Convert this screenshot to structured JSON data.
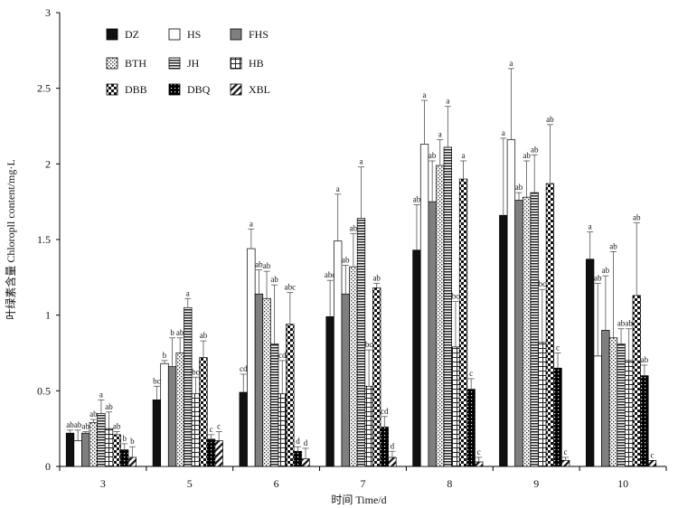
{
  "chart_data": {
    "type": "bar",
    "title": "",
    "xlabel": "时间 Time/d",
    "ylabel": "叶绿素含量 Chloropll content/mg·L",
    "ylim": [
      0,
      3
    ],
    "yticks": [
      "0",
      "0.5",
      "1",
      "1.5",
      "2",
      "2.5",
      "3"
    ],
    "categories": [
      "3",
      "5",
      "6",
      "7",
      "8",
      "9",
      "10"
    ],
    "grid": false,
    "legend_position": "top-left",
    "series": [
      {
        "name": "DZ",
        "pattern": "solid-black",
        "values": [
          0.22,
          0.44,
          0.49,
          0.99,
          1.43,
          1.66,
          1.37
        ],
        "errors": [
          0.02,
          0.09,
          0.12,
          0.24,
          0.3,
          0.51,
          0.18
        ],
        "labels": [
          "ab",
          "bc",
          "cd",
          "abc",
          "ab",
          "a",
          "a"
        ]
      },
      {
        "name": "HS",
        "pattern": "white",
        "values": [
          0.17,
          0.68,
          1.44,
          1.49,
          2.13,
          2.16,
          0.73
        ],
        "errors": [
          0.07,
          0.02,
          0.13,
          0.31,
          0.29,
          0.47,
          0.48
        ],
        "labels": [
          "ab",
          "b",
          "a",
          "a",
          "a",
          "a",
          "ab"
        ]
      },
      {
        "name": "FHS",
        "pattern": "gray",
        "values": [
          0.22,
          0.66,
          1.14,
          1.14,
          1.75,
          1.76,
          0.9
        ],
        "errors": [
          0.01,
          0.19,
          0.16,
          0.19,
          0.27,
          0.05,
          0.36
        ],
        "labels": [
          "ab",
          "b",
          "ab",
          "ab",
          "ab",
          "ab",
          "ab"
        ]
      },
      {
        "name": "BTH",
        "pattern": "dots",
        "values": [
          0.29,
          0.75,
          1.11,
          1.32,
          1.99,
          1.78,
          0.85
        ],
        "errors": [
          0.02,
          0.1,
          0.18,
          0.22,
          0.17,
          0.24,
          0.57
        ],
        "labels": [
          "ab",
          "ab",
          "ab",
          "ab",
          "a",
          "ab",
          "ab"
        ]
      },
      {
        "name": "JH",
        "pattern": "horizontal-lines",
        "values": [
          0.35,
          1.05,
          0.81,
          1.64,
          2.11,
          1.81,
          0.81
        ],
        "errors": [
          0.09,
          0.06,
          0.39,
          0.34,
          0.27,
          0.25,
          0.1
        ],
        "labels": [
          "a",
          "a",
          "ab",
          "a",
          "a",
          "ab",
          "ab"
        ]
      },
      {
        "name": "HB",
        "pattern": "grid",
        "values": [
          0.25,
          0.48,
          0.48,
          0.53,
          0.79,
          0.82,
          0.7
        ],
        "errors": [
          0.11,
          0.11,
          0.22,
          0.24,
          0.3,
          0.35,
          0.21
        ],
        "labels": [
          "ab",
          "bc",
          "cd",
          "bc",
          "bc",
          "bc",
          "ab"
        ]
      },
      {
        "name": "DBB",
        "pattern": "checker",
        "values": [
          0.21,
          0.72,
          0.94,
          1.18,
          1.9,
          1.87,
          1.13
        ],
        "errors": [
          0.02,
          0.11,
          0.21,
          0.03,
          0.12,
          0.39,
          0.48
        ],
        "labels": [
          "ab",
          "ab",
          "abc",
          "ab",
          "a",
          "ab",
          "ab"
        ]
      },
      {
        "name": "DBQ",
        "pattern": "black-dots",
        "values": [
          0.11,
          0.18,
          0.1,
          0.26,
          0.51,
          0.65,
          0.6
        ],
        "errors": [
          0.04,
          0.03,
          0.03,
          0.07,
          0.07,
          0.1,
          0.07
        ],
        "labels": [
          "b",
          "c",
          "d",
          "cd",
          "c",
          "c",
          "ab"
        ]
      },
      {
        "name": "XBL",
        "pattern": "diagonal",
        "values": [
          0.06,
          0.17,
          0.05,
          0.06,
          0.03,
          0.04,
          0.04
        ],
        "errors": [
          0.07,
          0.06,
          0.07,
          0.04,
          0.03,
          0.02,
          0.0
        ],
        "labels": [
          "b",
          "c",
          "d",
          "d",
          "c",
          "c",
          "c"
        ]
      }
    ]
  }
}
